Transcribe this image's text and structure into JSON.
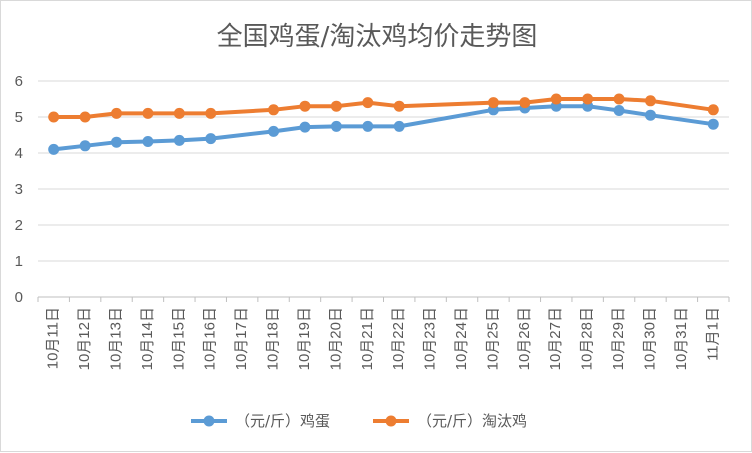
{
  "chart_data": {
    "type": "line",
    "title": "全国鸡蛋/淘汰鸡均价走势图",
    "categories": [
      "10月11日",
      "10月12日",
      "10月13日",
      "10月14日",
      "10月15日",
      "10月16日",
      "10月17日",
      "10月18日",
      "10月19日",
      "10月20日",
      "10月21日",
      "10月22日",
      "10月23日",
      "10月24日",
      "10月25日",
      "10月26日",
      "10月27日",
      "10月28日",
      "10月29日",
      "10月30日",
      "10月31日",
      "11月1日"
    ],
    "series": [
      {
        "name": "（元/斤）鸡蛋",
        "color": "#5b9bd5",
        "values": [
          4.1,
          4.2,
          4.3,
          4.32,
          4.35,
          4.4,
          null,
          4.6,
          4.72,
          4.74,
          4.74,
          4.74,
          null,
          null,
          5.2,
          5.25,
          5.3,
          5.3,
          5.18,
          5.05,
          null,
          4.8
        ]
      },
      {
        "name": "（元/斤）淘汰鸡",
        "color": "#ed7d31",
        "values": [
          5.0,
          5.0,
          5.1,
          5.1,
          5.1,
          5.1,
          null,
          5.2,
          5.3,
          5.3,
          5.4,
          5.3,
          null,
          null,
          5.4,
          5.4,
          5.5,
          5.5,
          5.5,
          5.45,
          null,
          5.2
        ]
      }
    ],
    "ylim": [
      0,
      6
    ],
    "yticks": [
      0,
      1,
      2,
      3,
      4,
      5,
      6
    ],
    "xlabel": "",
    "ylabel": "",
    "grid": true,
    "legend_position": "bottom",
    "gap_handling": "connect"
  }
}
